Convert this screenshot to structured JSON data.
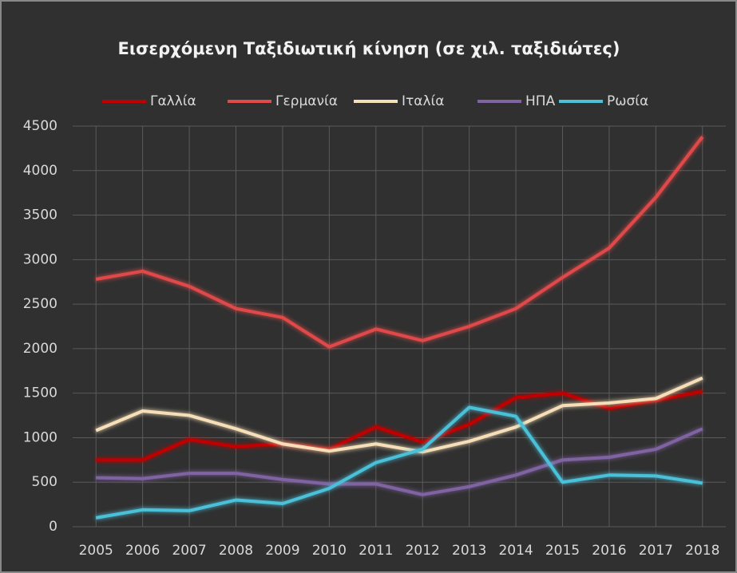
{
  "chart_data": {
    "type": "line",
    "title": "Εισερχόμενη Ταξιδιωτική κίνηση (σε χιλ. ταξιδιώτες)",
    "categories": [
      "2005",
      "2006",
      "2007",
      "2008",
      "2009",
      "2010",
      "2011",
      "2012",
      "2013",
      "2014",
      "2015",
      "2016",
      "2017",
      "2018"
    ],
    "series": [
      {
        "name": "Γαλλία",
        "color": "#c00000",
        "values": [
          750,
          750,
          980,
          900,
          930,
          870,
          1120,
          950,
          1150,
          1450,
          1500,
          1330,
          1420,
          1520
        ]
      },
      {
        "name": "Γερμανία",
        "color": "#e04a4a",
        "values": [
          2780,
          2870,
          2700,
          2450,
          2350,
          2020,
          2220,
          2090,
          2250,
          2450,
          2800,
          3130,
          3700,
          4380
        ]
      },
      {
        "name": "Ιταλία",
        "color": "#f6dfb8",
        "values": [
          1080,
          1300,
          1250,
          1100,
          930,
          850,
          930,
          840,
          960,
          1120,
          1360,
          1390,
          1440,
          1670
        ]
      },
      {
        "name": "ΗΠΑ",
        "color": "#8064a2",
        "values": [
          550,
          540,
          600,
          600,
          530,
          480,
          480,
          360,
          450,
          580,
          750,
          780,
          870,
          1100
        ]
      },
      {
        "name": "Ρωσία",
        "color": "#4bc0d9",
        "values": [
          100,
          190,
          180,
          300,
          260,
          430,
          720,
          870,
          1340,
          1240,
          500,
          580,
          570,
          490
        ]
      }
    ],
    "ylim": [
      0,
      4500
    ],
    "yticks": [
      0,
      500,
      1000,
      1500,
      2000,
      2500,
      3000,
      3500,
      4000,
      4500
    ],
    "grid": true,
    "legend": "top"
  }
}
